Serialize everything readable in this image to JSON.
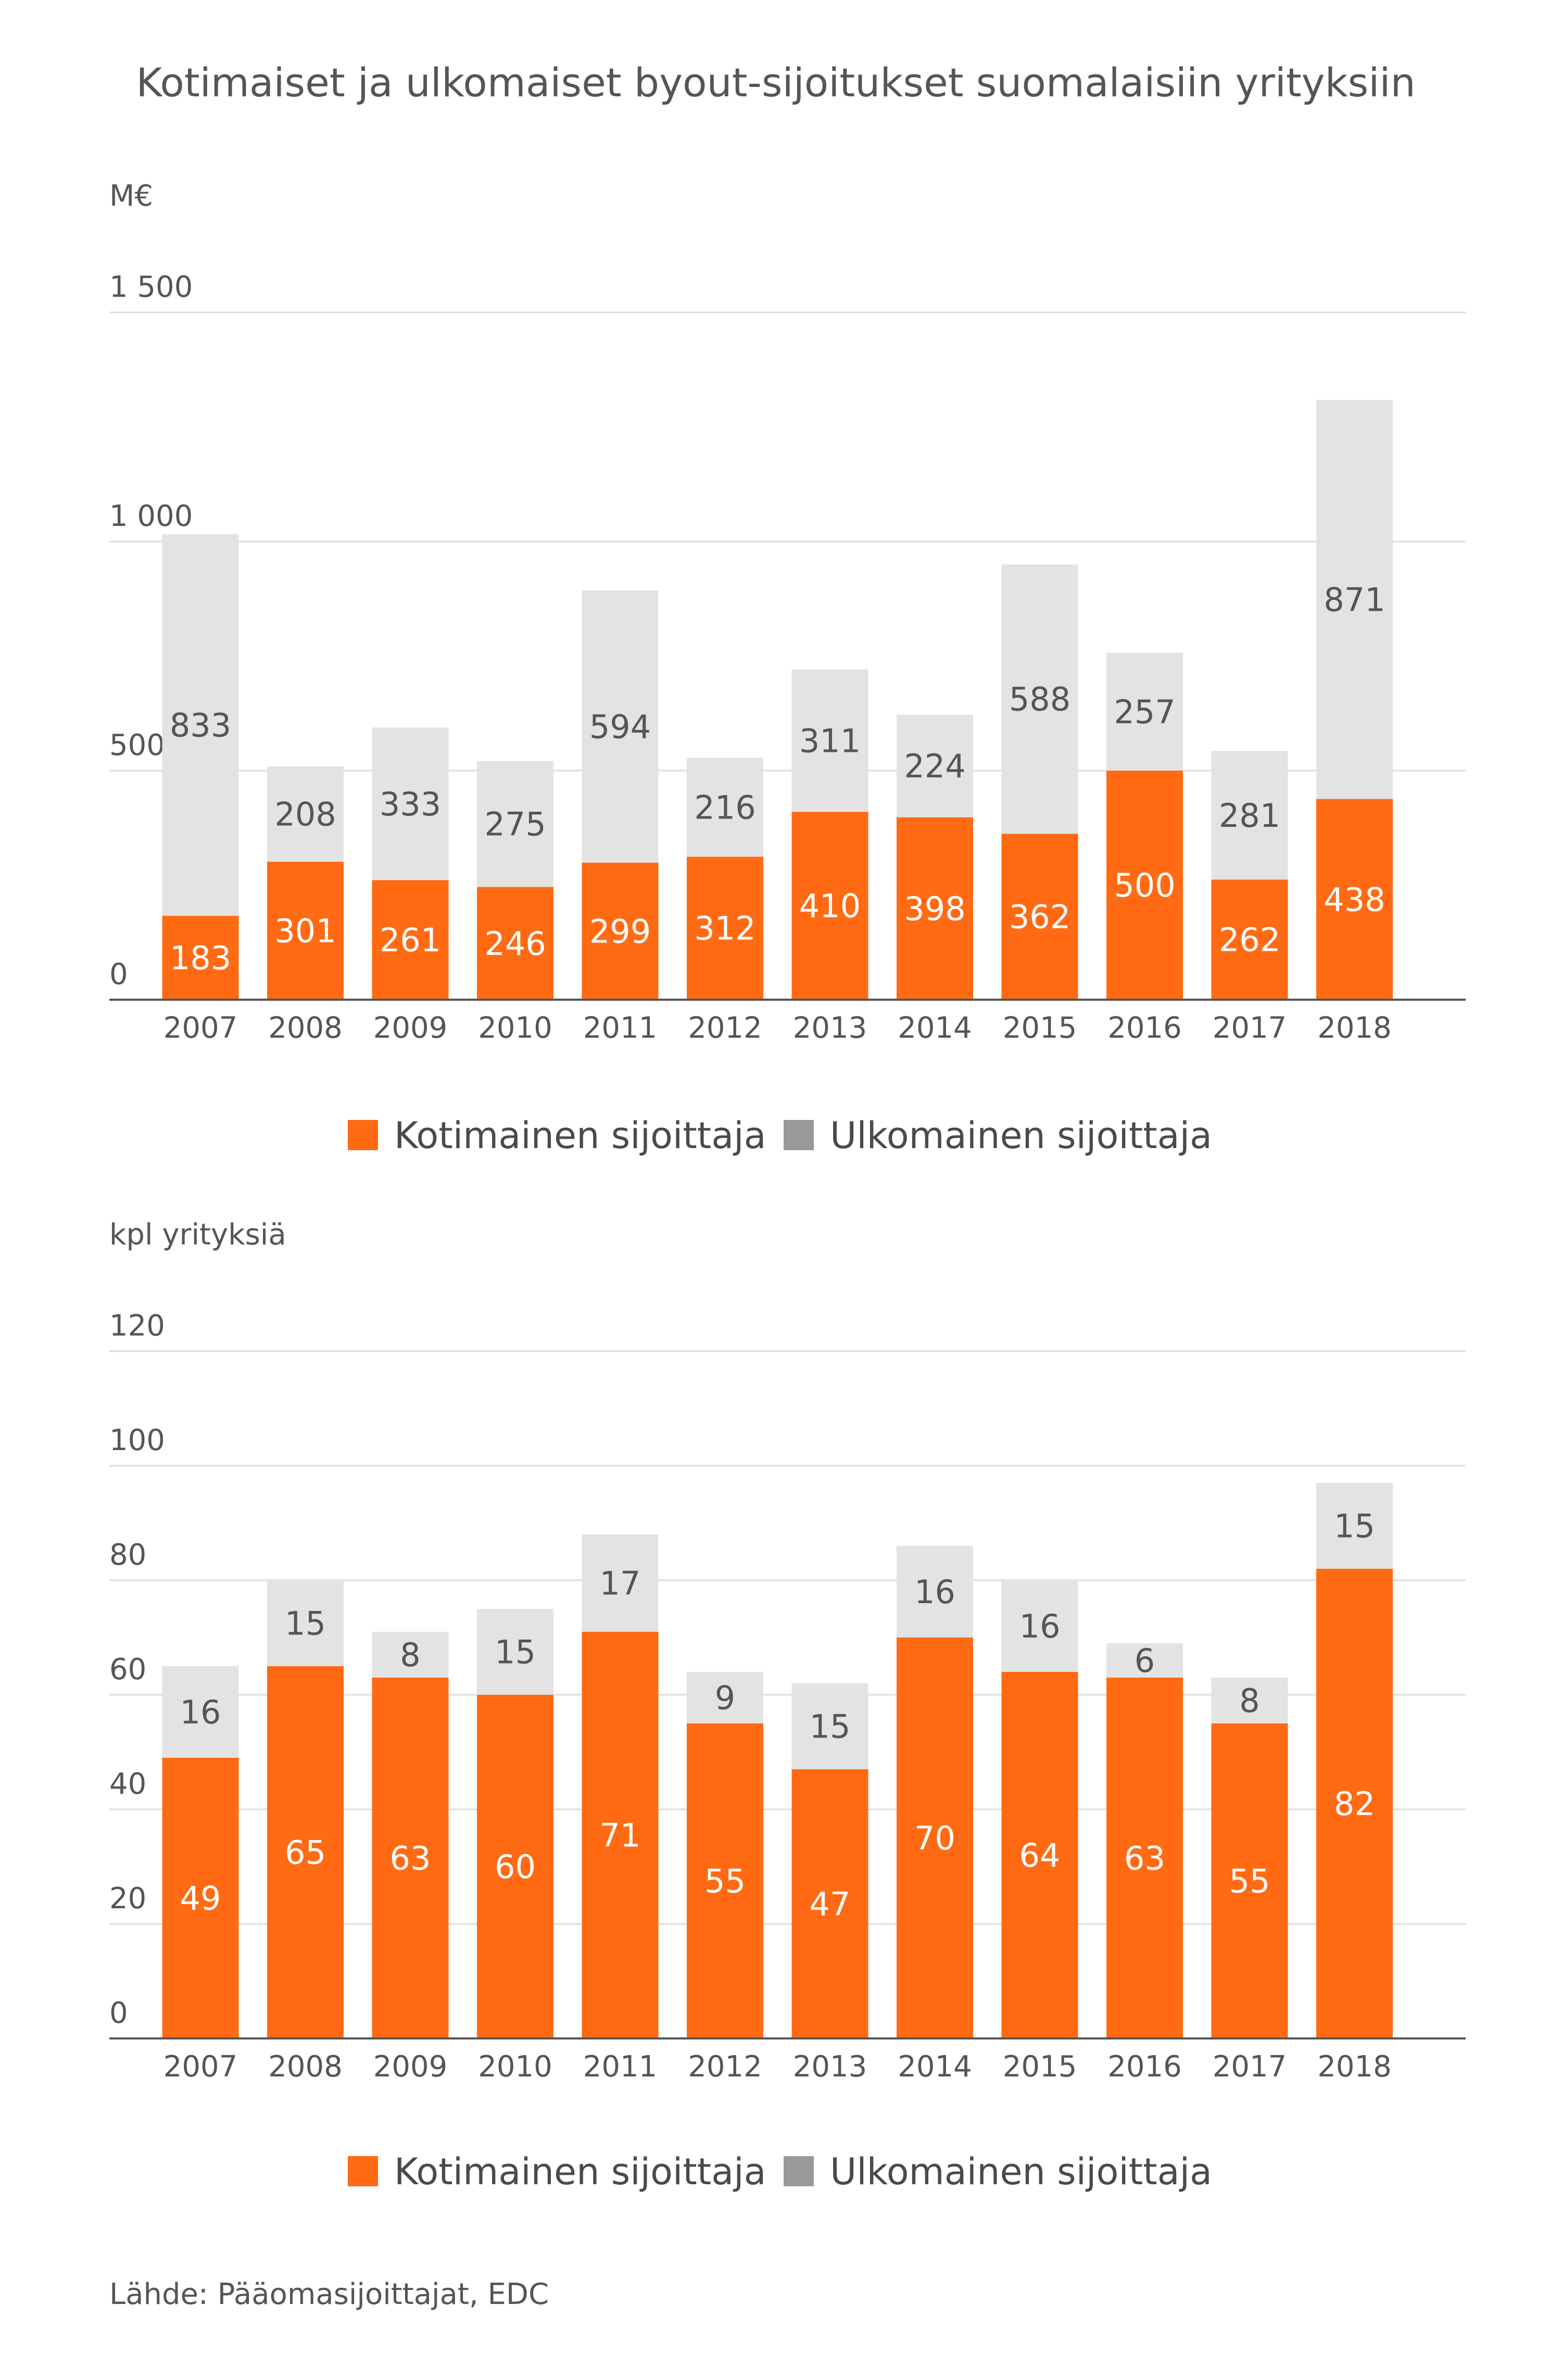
{
  "title": "Kotimaiset ja ulkomaiset byout-sijoitukset suomalaisiin yrityksiin",
  "source": "Lähde: Pääomasijoittajat, EDC",
  "colors": {
    "domestic": "#ff6a13",
    "foreign": "#e3e3e3",
    "foreign_legend": "#999999"
  },
  "chart_data": [
    {
      "type": "bar",
      "stacked": true,
      "ylabel": "M€",
      "ylim": [
        0,
        1500
      ],
      "yticks": [
        0,
        500,
        1000,
        1500
      ],
      "ytick_labels": [
        "0",
        "500",
        "1 000",
        "1 500"
      ],
      "grid": true,
      "legend_placement": "bottom-center",
      "categories": [
        "2007",
        "2008",
        "2009",
        "2010",
        "2011",
        "2012",
        "2013",
        "2014",
        "2015",
        "2016",
        "2017",
        "2018"
      ],
      "series": [
        {
          "name": "Kotimainen sijoittaja",
          "values": [
            183,
            301,
            261,
            246,
            299,
            312,
            410,
            398,
            362,
            500,
            262,
            438
          ]
        },
        {
          "name": "Ulkomainen sijoittaja",
          "values": [
            833,
            208,
            333,
            275,
            594,
            216,
            311,
            224,
            588,
            257,
            281,
            871
          ]
        }
      ]
    },
    {
      "type": "bar",
      "stacked": true,
      "ylabel": "kpl yrityksiä",
      "ylim": [
        0,
        120
      ],
      "yticks": [
        0,
        20,
        40,
        60,
        80,
        100,
        120
      ],
      "ytick_labels": [
        "0",
        "20",
        "40",
        "60",
        "80",
        "100",
        "120"
      ],
      "grid": true,
      "legend_placement": "bottom-center",
      "categories": [
        "2007",
        "2008",
        "2009",
        "2010",
        "2011",
        "2012",
        "2013",
        "2014",
        "2015",
        "2016",
        "2017",
        "2018"
      ],
      "series": [
        {
          "name": "Kotimainen sijoittaja",
          "values": [
            49,
            65,
            63,
            60,
            71,
            55,
            47,
            70,
            64,
            63,
            55,
            82
          ]
        },
        {
          "name": "Ulkomainen sijoittaja",
          "values": [
            16,
            15,
            8,
            15,
            17,
            9,
            15,
            16,
            16,
            6,
            8,
            15
          ]
        }
      ]
    }
  ]
}
